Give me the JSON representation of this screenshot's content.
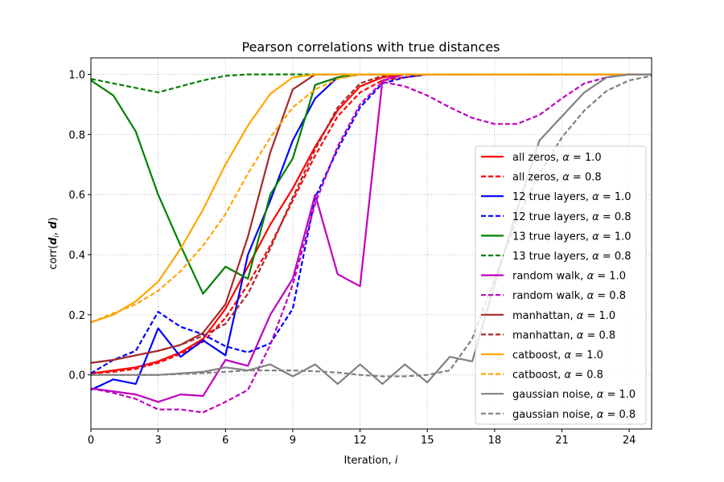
{
  "chart_data": {
    "type": "line",
    "title": "Pearson correlations with true distances",
    "xlabel": "Iteration, ",
    "xlabel_var": "i",
    "ylabel_prefix": "corr(",
    "ylabel_d_i": "d",
    "ylabel_sub": "i",
    "ylabel_mid": ", ",
    "ylabel_d": "d",
    "ylabel_suffix": ")",
    "xlim": [
      0,
      25
    ],
    "ylim": [
      -0.18,
      1.055
    ],
    "xticks": [
      0,
      3,
      6,
      9,
      12,
      15,
      18,
      21,
      24
    ],
    "yticks": [
      0.0,
      0.2,
      0.4,
      0.6,
      0.8,
      1.0
    ],
    "ytick_labels": [
      "0.0",
      "0.2",
      "0.4",
      "0.6",
      "0.8",
      "1.0"
    ],
    "grid": true,
    "legend_position": "center-right",
    "alpha_symbol": "α",
    "series": [
      {
        "name": "all zeros",
        "alpha": "1.0",
        "color": "#ff0000",
        "dash": false,
        "x": [
          0,
          1,
          2,
          3,
          4,
          5,
          6,
          7,
          8,
          9,
          10,
          11,
          12,
          13,
          14,
          15,
          16,
          17,
          18,
          19,
          20,
          21,
          22,
          23,
          24,
          25
        ],
        "values": [
          0.005,
          0.015,
          0.025,
          0.045,
          0.075,
          0.12,
          0.22,
          0.36,
          0.5,
          0.62,
          0.76,
          0.88,
          0.96,
          0.99,
          1.0,
          1.0,
          1.0,
          1.0,
          1.0,
          1.0,
          1.0,
          1.0,
          1.0,
          1.0,
          1.0,
          1.0
        ]
      },
      {
        "name": "all zeros",
        "alpha": "0.8",
        "color": "#ff0000",
        "dash": true,
        "x": [
          0,
          1,
          2,
          3,
          4,
          5,
          6,
          7,
          8,
          9,
          10,
          11,
          12,
          13,
          14,
          15,
          16,
          17,
          18,
          19,
          20,
          21,
          22,
          23,
          24,
          25
        ],
        "values": [
          0.005,
          0.01,
          0.02,
          0.04,
          0.07,
          0.11,
          0.19,
          0.3,
          0.43,
          0.58,
          0.73,
          0.86,
          0.94,
          0.98,
          0.99,
          1.0,
          1.0,
          1.0,
          1.0,
          1.0,
          1.0,
          1.0,
          1.0,
          1.0,
          1.0,
          1.0
        ]
      },
      {
        "name": "12 true layers",
        "alpha": "1.0",
        "color": "#0000ff",
        "dash": false,
        "x": [
          0,
          1,
          2,
          3,
          4,
          5,
          6,
          7,
          8,
          9,
          10,
          11,
          12,
          13,
          14,
          15,
          16,
          17,
          18,
          19,
          20,
          21,
          22,
          23,
          24,
          25
        ],
        "values": [
          -0.05,
          -0.015,
          -0.03,
          0.155,
          0.06,
          0.115,
          0.065,
          0.4,
          0.58,
          0.78,
          0.92,
          0.99,
          1.0,
          1.0,
          1.0,
          1.0,
          1.0,
          1.0,
          1.0,
          1.0,
          1.0,
          1.0,
          1.0,
          1.0,
          1.0,
          1.0
        ]
      },
      {
        "name": "12 true layers",
        "alpha": "0.8",
        "color": "#0000ff",
        "dash": true,
        "x": [
          0,
          1,
          2,
          3,
          4,
          5,
          6,
          7,
          8,
          9,
          10,
          11,
          12,
          13,
          14,
          15,
          16,
          17,
          18,
          19,
          20,
          21,
          22,
          23,
          24,
          25
        ],
        "values": [
          0.005,
          0.05,
          0.08,
          0.21,
          0.16,
          0.135,
          0.095,
          0.075,
          0.105,
          0.22,
          0.59,
          0.75,
          0.89,
          0.97,
          0.99,
          1.0,
          1.0,
          1.0,
          1.0,
          1.0,
          1.0,
          1.0,
          1.0,
          1.0,
          1.0,
          1.0
        ]
      },
      {
        "name": "13 true layers",
        "alpha": "1.0",
        "color": "#008000",
        "dash": false,
        "x": [
          0,
          1,
          2,
          3,
          4,
          5,
          6,
          7,
          8,
          9,
          10,
          11,
          12,
          13,
          14,
          15,
          16,
          17,
          18,
          19,
          20,
          21,
          22,
          23,
          24,
          25
        ],
        "values": [
          0.98,
          0.93,
          0.81,
          0.6,
          0.43,
          0.27,
          0.36,
          0.32,
          0.6,
          0.72,
          0.965,
          0.99,
          1.0,
          1.0,
          1.0,
          1.0,
          1.0,
          1.0,
          1.0,
          1.0,
          1.0,
          1.0,
          1.0,
          1.0,
          1.0,
          1.0
        ]
      },
      {
        "name": "13 true layers",
        "alpha": "0.8",
        "color": "#008000",
        "dash": true,
        "x": [
          0,
          1,
          2,
          3,
          4,
          5,
          6,
          7,
          8,
          9,
          10,
          11,
          12,
          13,
          14,
          15,
          16,
          17,
          18,
          19,
          20,
          21,
          22,
          23,
          24,
          25
        ],
        "values": [
          0.985,
          0.97,
          0.955,
          0.94,
          0.96,
          0.98,
          0.995,
          1.0,
          1.0,
          1.0,
          1.0,
          1.0,
          1.0,
          1.0,
          1.0,
          1.0,
          1.0,
          1.0,
          1.0,
          1.0,
          1.0,
          1.0,
          1.0,
          1.0,
          1.0,
          1.0
        ]
      },
      {
        "name": "random walk",
        "alpha": "1.0",
        "color": "#bf00bf",
        "dash": false,
        "x": [
          0,
          1,
          2,
          3,
          4,
          5,
          6,
          7,
          8,
          9,
          10,
          11,
          12,
          13,
          14,
          15,
          16,
          17,
          18,
          19,
          20,
          21,
          22,
          23,
          24,
          25
        ],
        "values": [
          -0.045,
          -0.055,
          -0.065,
          -0.09,
          -0.065,
          -0.07,
          0.05,
          0.03,
          0.2,
          0.32,
          0.6,
          0.335,
          0.295,
          0.98,
          1.0,
          1.0,
          1.0,
          1.0,
          1.0,
          1.0,
          1.0,
          1.0,
          1.0,
          1.0,
          1.0,
          1.0
        ]
      },
      {
        "name": "random walk",
        "alpha": "0.8",
        "color": "#bf00bf",
        "dash": true,
        "x": [
          0,
          1,
          2,
          3,
          4,
          5,
          6,
          7,
          8,
          9,
          10,
          11,
          12,
          13,
          14,
          15,
          16,
          17,
          18,
          19,
          20,
          21,
          22,
          23,
          24,
          25
        ],
        "values": [
          -0.045,
          -0.06,
          -0.08,
          -0.115,
          -0.115,
          -0.125,
          -0.09,
          -0.05,
          0.1,
          0.3,
          0.57,
          0.76,
          0.9,
          0.975,
          0.96,
          0.93,
          0.89,
          0.855,
          0.835,
          0.835,
          0.865,
          0.92,
          0.97,
          0.99,
          1.0,
          1.0
        ]
      },
      {
        "name": "manhattan",
        "alpha": "1.0",
        "color": "#a52a2a",
        "dash": false,
        "x": [
          0,
          1,
          2,
          3,
          4,
          5,
          6,
          7,
          8,
          9,
          10,
          11,
          12,
          13,
          14,
          15,
          16,
          17,
          18,
          19,
          20,
          21,
          22,
          23,
          24,
          25
        ],
        "values": [
          0.04,
          0.05,
          0.065,
          0.08,
          0.1,
          0.14,
          0.235,
          0.46,
          0.74,
          0.95,
          1.0,
          1.0,
          1.0,
          1.0,
          1.0,
          1.0,
          1.0,
          1.0,
          1.0,
          1.0,
          1.0,
          1.0,
          1.0,
          1.0,
          1.0,
          1.0
        ]
      },
      {
        "name": "manhattan",
        "alpha": "0.8",
        "color": "#a52a2a",
        "dash": true,
        "x": [
          0,
          1,
          2,
          3,
          4,
          5,
          6,
          7,
          8,
          9,
          10,
          11,
          12,
          13,
          14,
          15,
          16,
          17,
          18,
          19,
          20,
          21,
          22,
          23,
          24,
          25
        ],
        "values": [
          0.04,
          0.05,
          0.065,
          0.08,
          0.1,
          0.13,
          0.17,
          0.27,
          0.42,
          0.59,
          0.75,
          0.89,
          0.97,
          0.995,
          1.0,
          1.0,
          1.0,
          1.0,
          1.0,
          1.0,
          1.0,
          1.0,
          1.0,
          1.0,
          1.0,
          1.0
        ]
      },
      {
        "name": "catboost",
        "alpha": "1.0",
        "color": "#ffa500",
        "dash": false,
        "x": [
          0,
          1,
          2,
          3,
          4,
          5,
          6,
          7,
          8,
          9,
          10,
          11,
          12,
          13,
          14,
          15,
          16,
          17,
          18,
          19,
          20,
          21,
          22,
          23,
          24,
          25
        ],
        "values": [
          0.175,
          0.2,
          0.245,
          0.31,
          0.42,
          0.55,
          0.7,
          0.83,
          0.935,
          0.99,
          1.0,
          1.0,
          1.0,
          1.0,
          1.0,
          1.0,
          1.0,
          1.0,
          1.0,
          1.0,
          1.0,
          1.0,
          1.0,
          1.0,
          1.0,
          1.0
        ]
      },
      {
        "name": "catboost",
        "alpha": "0.8",
        "color": "#ffa500",
        "dash": true,
        "x": [
          0,
          1,
          2,
          3,
          4,
          5,
          6,
          7,
          8,
          9,
          10,
          11,
          12,
          13,
          14,
          15,
          16,
          17,
          18,
          19,
          20,
          21,
          22,
          23,
          24,
          25
        ],
        "values": [
          0.175,
          0.205,
          0.235,
          0.28,
          0.345,
          0.43,
          0.535,
          0.67,
          0.79,
          0.89,
          0.95,
          0.985,
          1.0,
          1.0,
          1.0,
          1.0,
          1.0,
          1.0,
          1.0,
          1.0,
          1.0,
          1.0,
          1.0,
          1.0,
          1.0,
          1.0
        ]
      },
      {
        "name": "gaussian noise",
        "alpha": "1.0",
        "color": "#808080",
        "dash": false,
        "x": [
          0,
          1,
          2,
          3,
          4,
          5,
          6,
          7,
          8,
          9,
          10,
          11,
          12,
          13,
          14,
          15,
          16,
          17,
          18,
          19,
          20,
          21,
          22,
          23,
          24,
          25
        ],
        "values": [
          0.0,
          0.0,
          0.0,
          0.0,
          0.005,
          0.01,
          0.025,
          0.015,
          0.035,
          -0.005,
          0.035,
          -0.03,
          0.035,
          -0.03,
          0.035,
          -0.025,
          0.06,
          0.045,
          0.3,
          0.55,
          0.78,
          0.86,
          0.94,
          0.99,
          1.0,
          1.0
        ]
      },
      {
        "name": "gaussian noise",
        "alpha": "0.8",
        "color": "#808080",
        "dash": true,
        "x": [
          0,
          1,
          2,
          3,
          4,
          5,
          6,
          7,
          8,
          9,
          10,
          11,
          12,
          13,
          14,
          15,
          16,
          17,
          18,
          19,
          20,
          21,
          22,
          23,
          24,
          25
        ],
        "values": [
          0.0,
          0.0,
          0.0,
          0.0,
          0.003,
          0.006,
          0.01,
          0.015,
          0.015,
          0.015,
          0.012,
          0.008,
          0.0,
          -0.005,
          -0.005,
          0.0,
          0.015,
          0.12,
          0.32,
          0.52,
          0.67,
          0.79,
          0.88,
          0.945,
          0.98,
          0.995
        ]
      }
    ]
  }
}
